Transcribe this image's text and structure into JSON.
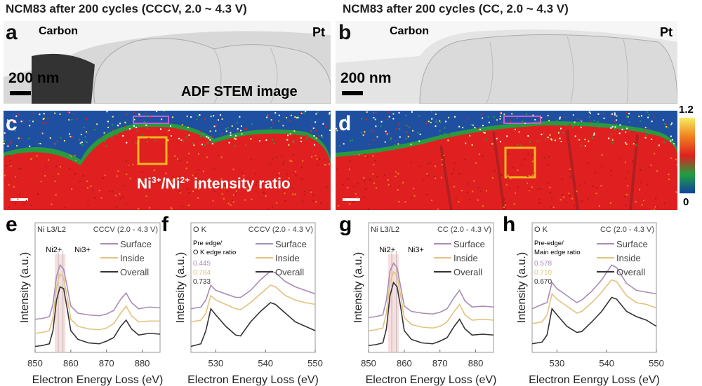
{
  "titles": {
    "left": "NCM83 after 200 cycles (CCCV, 2.0 ~ 4.3 V)",
    "right": "NCM83 after 200 cycles (CC, 2.0 ~ 4.3 V)"
  },
  "panels": {
    "a": {
      "letter": "a",
      "carbon": "Carbon",
      "pt": "Pt",
      "scale": "200 nm",
      "caption": "ADF STEM image"
    },
    "b": {
      "letter": "b",
      "carbon": "Carbon",
      "pt": "Pt",
      "scale": "200 nm"
    },
    "c": {
      "letter": "c",
      "caption_main": "Ni",
      "sup1": "3+",
      "slash": "/Ni",
      "sup2": "2+",
      "caption_tail": " intensity ratio"
    },
    "d": {
      "letter": "d"
    },
    "colorbar": {
      "max": "1.2",
      "min": "0",
      "colors": [
        "#f5ee60",
        "#f08020",
        "#e02020",
        "#20a040",
        "#1040a0"
      ]
    }
  },
  "colors": {
    "surface": "#a98bb6",
    "inside": "#e2c27e",
    "overall": "#333333",
    "map_red": "#e02020",
    "map_blue": "#1f4fa0",
    "map_green": "#2a9a40",
    "box_yellow": "#f5b820",
    "box_magenta": "#c060d0"
  },
  "chart_data": [
    {
      "panel": "e",
      "type": "line",
      "edge": "Ni L3/L2",
      "condition": "CCCV (2.0 - 4.3 V)",
      "peak_labels": [
        "Ni2+",
        "Ni3+"
      ],
      "xlabel": "Electron Energy Loss (eV)",
      "ylabel": "Intensity (a.u.)",
      "xlim": [
        850,
        885
      ],
      "xticks": [
        850,
        860,
        870,
        880
      ],
      "legend": "top-right",
      "x": [
        850,
        852,
        854,
        855,
        856,
        857,
        858,
        859,
        860,
        862,
        865,
        868,
        870,
        872,
        874,
        875.5,
        877,
        879,
        882,
        885
      ],
      "series": [
        {
          "name": "Surface",
          "values": [
            0.33,
            0.34,
            0.36,
            0.5,
            0.82,
            0.95,
            0.9,
            0.7,
            0.48,
            0.4,
            0.38,
            0.37,
            0.39,
            0.43,
            0.56,
            0.63,
            0.52,
            0.45,
            0.47,
            0.46
          ]
        },
        {
          "name": "Inside",
          "values": [
            0.17,
            0.18,
            0.2,
            0.35,
            0.7,
            0.85,
            0.8,
            0.58,
            0.33,
            0.25,
            0.22,
            0.21,
            0.23,
            0.28,
            0.4,
            0.48,
            0.37,
            0.3,
            0.31,
            0.31
          ]
        },
        {
          "name": "Overall",
          "values": [
            0.02,
            0.03,
            0.05,
            0.2,
            0.55,
            0.7,
            0.68,
            0.45,
            0.2,
            0.1,
            0.06,
            0.05,
            0.08,
            0.12,
            0.25,
            0.32,
            0.22,
            0.15,
            0.17,
            0.16
          ]
        }
      ]
    },
    {
      "panel": "f",
      "type": "line",
      "edge": "O K",
      "condition": "CCCV (2.0 - 4.3 V)",
      "ratio_label": [
        "Pre edge/",
        "O K edge ratio"
      ],
      "ratios": [
        "0.445",
        "0.784",
        "0.733"
      ],
      "xlabel": "Electron Energy Loss (eV)",
      "ylabel": "Intensity (a.u.)",
      "xlim": [
        525,
        550
      ],
      "xticks": [
        530,
        540,
        550
      ],
      "legend": "top-right",
      "x": [
        525,
        527,
        528,
        529,
        530,
        532,
        534,
        535,
        537,
        539,
        541,
        542,
        544,
        546,
        548,
        550
      ],
      "series": [
        {
          "name": "Surface",
          "values": [
            0.45,
            0.47,
            0.55,
            0.72,
            0.66,
            0.62,
            0.58,
            0.58,
            0.66,
            0.78,
            0.88,
            0.86,
            0.76,
            0.7,
            0.66,
            0.62
          ]
        },
        {
          "name": "Inside",
          "values": [
            0.3,
            0.32,
            0.4,
            0.6,
            0.55,
            0.5,
            0.45,
            0.44,
            0.52,
            0.62,
            0.72,
            0.7,
            0.6,
            0.55,
            0.52,
            0.5
          ]
        },
        {
          "name": "Overall",
          "values": [
            0.02,
            0.05,
            0.2,
            0.45,
            0.38,
            0.25,
            0.15,
            0.14,
            0.3,
            0.42,
            0.52,
            0.5,
            0.4,
            0.3,
            0.25,
            0.2
          ]
        }
      ]
    },
    {
      "panel": "g",
      "type": "line",
      "edge": "Ni L3/L2",
      "condition": "CC (2.0 - 4.3 V)",
      "peak_labels": [
        "Ni2+",
        "Ni3+"
      ],
      "xlabel": "Electron Energy Loss (eV)",
      "ylabel": "Intensity (a.u.)",
      "xlim": [
        850,
        885
      ],
      "xticks": [
        850,
        860,
        870,
        880
      ],
      "legend": "top-right",
      "x": [
        850,
        852,
        854,
        855,
        856,
        857,
        858,
        859,
        860,
        862,
        865,
        868,
        870,
        872,
        874,
        875.5,
        877,
        879,
        882,
        885
      ],
      "series": [
        {
          "name": "Surface",
          "values": [
            0.35,
            0.36,
            0.38,
            0.55,
            0.88,
            0.97,
            0.92,
            0.7,
            0.48,
            0.42,
            0.4,
            0.39,
            0.41,
            0.45,
            0.58,
            0.66,
            0.54,
            0.47,
            0.48,
            0.47
          ]
        },
        {
          "name": "Inside",
          "values": [
            0.2,
            0.21,
            0.23,
            0.4,
            0.75,
            0.87,
            0.83,
            0.6,
            0.35,
            0.27,
            0.24,
            0.23,
            0.25,
            0.3,
            0.42,
            0.5,
            0.38,
            0.32,
            0.33,
            0.32
          ]
        },
        {
          "name": "Overall",
          "values": [
            0.03,
            0.04,
            0.06,
            0.22,
            0.6,
            0.75,
            0.7,
            0.47,
            0.2,
            0.1,
            0.06,
            0.05,
            0.08,
            0.12,
            0.25,
            0.33,
            0.22,
            0.15,
            0.16,
            0.15
          ]
        }
      ]
    },
    {
      "panel": "h",
      "type": "line",
      "edge": "O K",
      "condition": "CC (2.0 - 4.3 V)",
      "ratio_label": [
        "Pre-edge/",
        "Main edge ratio"
      ],
      "ratios": [
        "0.578",
        "0.710",
        "0.670"
      ],
      "xlabel": "Electron Eenrgy Loss (eV)",
      "ylabel": "Intensity (a.u.)",
      "xlim": [
        525,
        550
      ],
      "xticks": [
        530,
        540,
        550
      ],
      "legend": "top-right",
      "x": [
        525,
        527,
        528,
        529,
        530,
        532,
        534,
        535,
        537,
        539,
        541,
        542,
        544,
        546,
        548,
        550
      ],
      "series": [
        {
          "name": "Surface",
          "values": [
            0.45,
            0.5,
            0.52,
            0.75,
            0.68,
            0.6,
            0.52,
            0.55,
            0.65,
            0.78,
            0.95,
            0.92,
            0.74,
            0.66,
            0.64,
            0.62
          ]
        },
        {
          "name": "Inside",
          "values": [
            0.28,
            0.3,
            0.38,
            0.62,
            0.56,
            0.48,
            0.4,
            0.42,
            0.52,
            0.64,
            0.78,
            0.76,
            0.6,
            0.52,
            0.5,
            0.46
          ]
        },
        {
          "name": "Overall",
          "values": [
            0.05,
            0.07,
            0.15,
            0.45,
            0.38,
            0.25,
            0.18,
            0.19,
            0.3,
            0.42,
            0.58,
            0.56,
            0.42,
            0.36,
            0.32,
            0.25
          ]
        }
      ]
    }
  ]
}
